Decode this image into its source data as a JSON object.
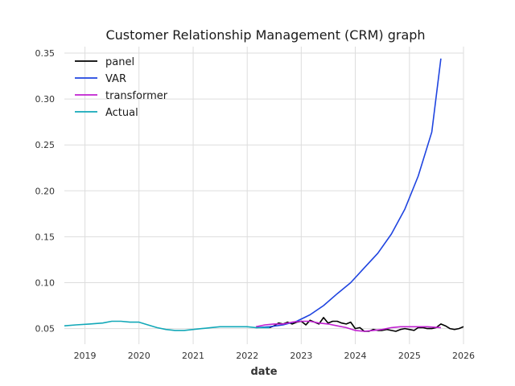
{
  "chart_data": {
    "type": "line",
    "title": "Customer Relationship Management (CRM) graph",
    "xlabel": "date",
    "ylabel": "",
    "xlim": [
      "2018-08-15",
      "2026-01-01"
    ],
    "ylim": [
      0.033,
      0.357
    ],
    "x_ticks": [
      "2019",
      "2020",
      "2021",
      "2022",
      "2023",
      "2024",
      "2025",
      "2026"
    ],
    "y_ticks": [
      "0.05",
      "0.10",
      "0.15",
      "0.20",
      "0.25",
      "0.30",
      "0.35"
    ],
    "grid": true,
    "legend_position": "top-left",
    "series": [
      {
        "name": "panel",
        "color": "#000000",
        "points": [
          [
            "2022-06-01",
            0.051
          ],
          [
            "2022-07-01",
            0.053
          ],
          [
            "2022-08-01",
            0.056
          ],
          [
            "2022-09-01",
            0.055
          ],
          [
            "2022-10-01",
            0.057
          ],
          [
            "2022-11-01",
            0.055
          ],
          [
            "2022-12-01",
            0.057
          ],
          [
            "2023-01-01",
            0.058
          ],
          [
            "2023-02-01",
            0.054
          ],
          [
            "2023-03-01",
            0.059
          ],
          [
            "2023-04-01",
            0.057
          ],
          [
            "2023-05-01",
            0.055
          ],
          [
            "2023-06-01",
            0.062
          ],
          [
            "2023-07-01",
            0.056
          ],
          [
            "2023-08-01",
            0.058
          ],
          [
            "2023-09-01",
            0.058
          ],
          [
            "2023-10-01",
            0.056
          ],
          [
            "2023-11-01",
            0.055
          ],
          [
            "2023-12-01",
            0.057
          ],
          [
            "2024-01-01",
            0.05
          ],
          [
            "2024-02-01",
            0.051
          ],
          [
            "2024-03-01",
            0.047
          ],
          [
            "2024-04-01",
            0.047
          ],
          [
            "2024-05-01",
            0.049
          ],
          [
            "2024-06-01",
            0.048
          ],
          [
            "2024-07-01",
            0.048
          ],
          [
            "2024-08-01",
            0.049
          ],
          [
            "2024-09-01",
            0.048
          ],
          [
            "2024-10-01",
            0.047
          ],
          [
            "2024-11-01",
            0.049
          ],
          [
            "2024-12-01",
            0.05
          ],
          [
            "2025-01-01",
            0.049
          ],
          [
            "2025-02-01",
            0.048
          ],
          [
            "2025-03-01",
            0.051
          ],
          [
            "2025-04-01",
            0.051
          ],
          [
            "2025-05-01",
            0.05
          ],
          [
            "2025-06-01",
            0.05
          ],
          [
            "2025-07-01",
            0.051
          ],
          [
            "2025-08-01",
            0.055
          ],
          [
            "2025-09-01",
            0.053
          ],
          [
            "2025-10-01",
            0.05
          ],
          [
            "2025-11-01",
            0.049
          ],
          [
            "2025-12-01",
            0.05
          ],
          [
            "2026-01-01",
            0.052
          ]
        ]
      },
      {
        "name": "VAR",
        "color": "#1f44e0",
        "points": [
          [
            "2022-03-01",
            0.051
          ],
          [
            "2022-06-01",
            0.052
          ],
          [
            "2022-09-01",
            0.054
          ],
          [
            "2022-12-01",
            0.058
          ],
          [
            "2023-03-01",
            0.065
          ],
          [
            "2023-06-01",
            0.075
          ],
          [
            "2023-09-01",
            0.088
          ],
          [
            "2023-12-01",
            0.1
          ],
          [
            "2024-03-01",
            0.116
          ],
          [
            "2024-06-01",
            0.132
          ],
          [
            "2024-09-01",
            0.153
          ],
          [
            "2024-12-01",
            0.18
          ],
          [
            "2025-03-01",
            0.216
          ],
          [
            "2025-06-01",
            0.264
          ],
          [
            "2025-08-01",
            0.344
          ]
        ]
      },
      {
        "name": "transformer",
        "color": "#c020d0",
        "points": [
          [
            "2022-03-01",
            0.052
          ],
          [
            "2022-05-01",
            0.054
          ],
          [
            "2022-07-01",
            0.055
          ],
          [
            "2022-09-01",
            0.055
          ],
          [
            "2022-11-01",
            0.057
          ],
          [
            "2023-01-01",
            0.058
          ],
          [
            "2023-03-01",
            0.058
          ],
          [
            "2023-05-01",
            0.056
          ],
          [
            "2023-07-01",
            0.055
          ],
          [
            "2023-09-01",
            0.053
          ],
          [
            "2023-11-01",
            0.051
          ],
          [
            "2024-01-01",
            0.048
          ],
          [
            "2024-03-01",
            0.047
          ],
          [
            "2024-05-01",
            0.048
          ],
          [
            "2024-07-01",
            0.049
          ],
          [
            "2024-09-01",
            0.051
          ],
          [
            "2024-11-01",
            0.052
          ],
          [
            "2025-01-01",
            0.052
          ],
          [
            "2025-03-01",
            0.052
          ],
          [
            "2025-05-01",
            0.052
          ],
          [
            "2025-08-01",
            0.051
          ]
        ]
      },
      {
        "name": "Actual",
        "color": "#12a8b8",
        "points": [
          [
            "2018-08-15",
            0.053
          ],
          [
            "2018-11-01",
            0.054
          ],
          [
            "2019-02-01",
            0.055
          ],
          [
            "2019-05-01",
            0.056
          ],
          [
            "2019-07-01",
            0.058
          ],
          [
            "2019-09-01",
            0.058
          ],
          [
            "2019-11-01",
            0.057
          ],
          [
            "2020-01-01",
            0.057
          ],
          [
            "2020-03-01",
            0.054
          ],
          [
            "2020-05-01",
            0.051
          ],
          [
            "2020-07-01",
            0.049
          ],
          [
            "2020-09-01",
            0.048
          ],
          [
            "2020-11-01",
            0.048
          ],
          [
            "2021-01-01",
            0.049
          ],
          [
            "2021-03-01",
            0.05
          ],
          [
            "2021-05-01",
            0.051
          ],
          [
            "2021-07-01",
            0.052
          ],
          [
            "2021-09-01",
            0.052
          ],
          [
            "2021-11-01",
            0.052
          ],
          [
            "2022-01-01",
            0.052
          ],
          [
            "2022-03-01",
            0.051
          ],
          [
            "2022-06-01",
            0.051
          ]
        ]
      }
    ]
  }
}
